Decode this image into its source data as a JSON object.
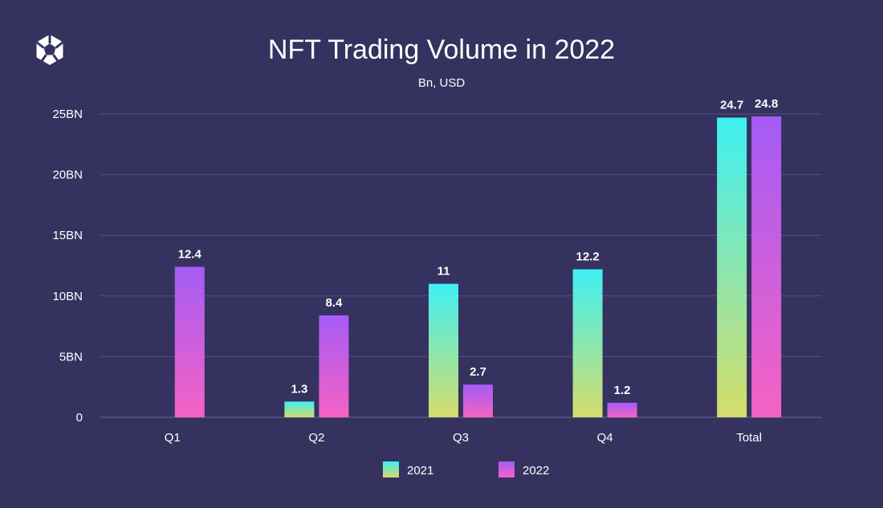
{
  "chart_data": {
    "type": "bar",
    "title": "NFT Trading Volume in 2022",
    "subtitle": "Bn, USD",
    "xlabel": "",
    "ylabel": "",
    "categories": [
      "Q1",
      "Q2",
      "Q3",
      "Q4",
      "Total"
    ],
    "series": [
      {
        "name": "2021",
        "values": [
          null,
          1.3,
          11,
          12.2,
          24.7
        ],
        "labels": [
          "",
          "1.3",
          "11",
          "12.2",
          "24.7"
        ]
      },
      {
        "name": "2022",
        "values": [
          12.4,
          8.4,
          2.7,
          1.2,
          24.8
        ],
        "labels": [
          "12.4",
          "8.4",
          "2.7",
          "1.2",
          "24.8"
        ]
      }
    ],
    "ylim": [
      0,
      25
    ],
    "yticks": [
      0,
      5,
      10,
      15,
      20,
      25
    ],
    "ytick_labels": [
      "0",
      "5BN",
      "10BN",
      "15BN",
      "20BN",
      "25BN"
    ],
    "grid": true,
    "legend_position": "bottom-center"
  },
  "colors": {
    "background": "#35325f",
    "series_2021_top": "#3ef0f4",
    "series_2021_bottom": "#d6dc6a",
    "series_2022_top": "#a45cf5",
    "series_2022_bottom": "#f562c4"
  },
  "logo": {
    "icon": "hexagon-star-logo-icon"
  }
}
